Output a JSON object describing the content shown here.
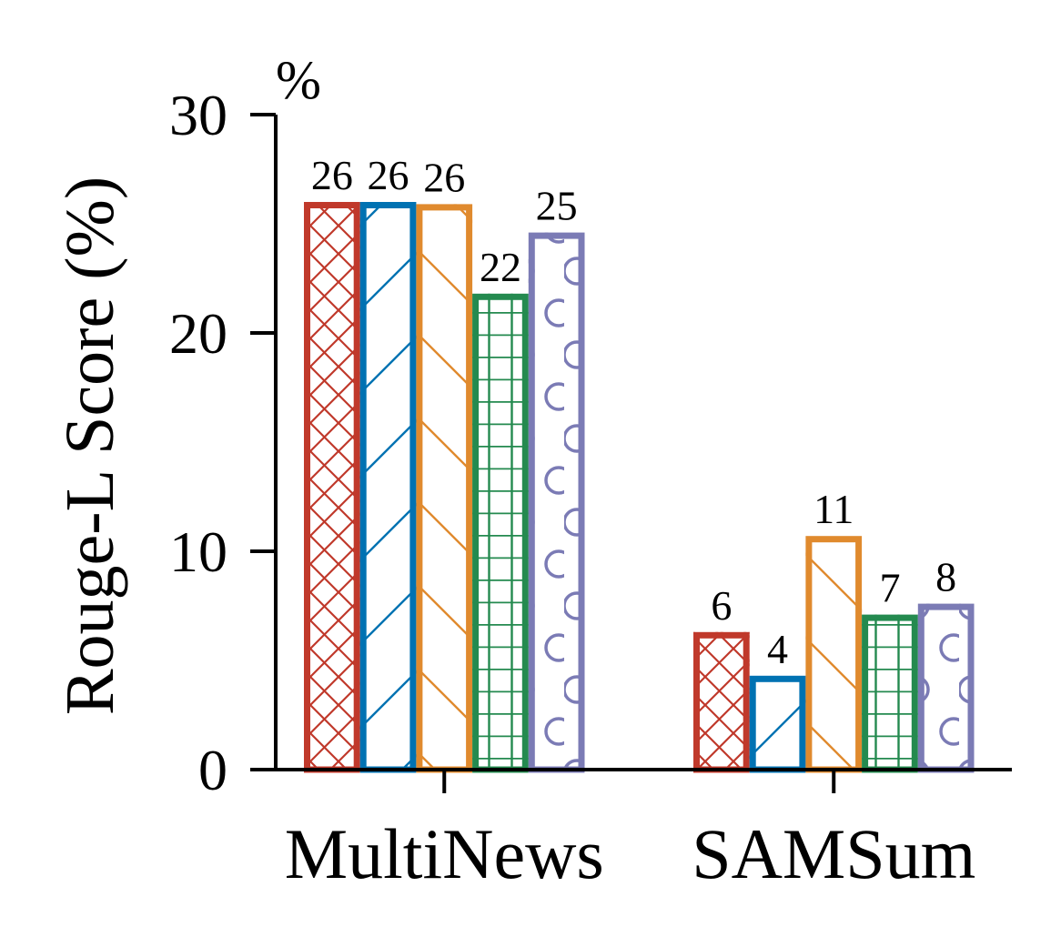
{
  "chart_data": {
    "type": "bar",
    "ylabel": "Rouge-L Score (%)",
    "unit_label": "%",
    "ylim": [
      0,
      30
    ],
    "yticks": [
      0,
      10,
      20,
      30
    ],
    "categories": [
      "MultiNews",
      "SAMSum"
    ],
    "series": [
      {
        "values": [
          26.0,
          6.3
        ],
        "labels": [
          "26",
          "6"
        ],
        "color": "#c0392b",
        "pattern": "crosshatch"
      },
      {
        "values": [
          26.0,
          4.3
        ],
        "labels": [
          "26",
          "4"
        ],
        "color": "#0072b2",
        "pattern": "forward-diagonal"
      },
      {
        "values": [
          25.9,
          10.7
        ],
        "labels": [
          "26",
          "11"
        ],
        "color": "#e08a2e",
        "pattern": "back-diagonal"
      },
      {
        "values": [
          21.8,
          7.1
        ],
        "labels": [
          "22",
          "7"
        ],
        "color": "#248a4f",
        "pattern": "grid"
      },
      {
        "values": [
          24.6,
          7.6
        ],
        "labels": [
          "25",
          "8"
        ],
        "color": "#7b7bb5",
        "pattern": "circles"
      }
    ],
    "grid": false,
    "legend": "none"
  }
}
